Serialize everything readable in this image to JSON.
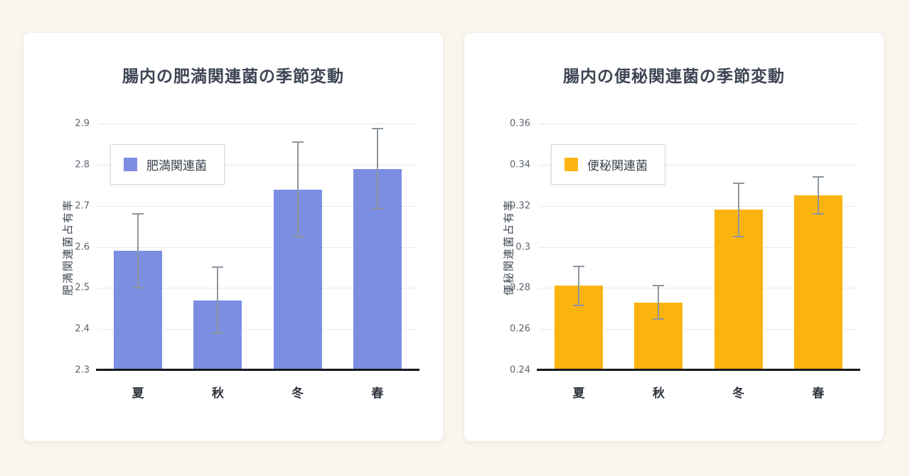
{
  "chart_data": [
    {
      "type": "bar",
      "title": "腸内の肥満関連菌の季節変動",
      "ylabel": "肥満関連菌占有率",
      "xlabel": "",
      "categories": [
        "夏",
        "秋",
        "冬",
        "春"
      ],
      "values": [
        2.59,
        2.47,
        2.74,
        2.79
      ],
      "errors": [
        0.09,
        0.08,
        0.115,
        0.098
      ],
      "ylim": [
        2.3,
        2.9
      ],
      "yticks": [
        "2.3",
        "2.4",
        "2.5",
        "2.6",
        "2.7",
        "2.8",
        "2.9"
      ],
      "legend": "肥満関連菌",
      "legend_position": "top-left",
      "bar_color": "#7C8EE2",
      "error_color": "#8f969e",
      "grid": true
    },
    {
      "type": "bar",
      "title": "腸内の便秘関連菌の季節変動",
      "ylabel": "便秘関連菌占有率",
      "xlabel": "",
      "categories": [
        "夏",
        "秋",
        "冬",
        "春"
      ],
      "values": [
        0.281,
        0.273,
        0.318,
        0.325
      ],
      "errors": [
        0.0095,
        0.008,
        0.013,
        0.009
      ],
      "ylim": [
        0.24,
        0.36
      ],
      "yticks": [
        "0.24",
        "0.26",
        "0.28",
        "0.3",
        "0.32",
        "0.34",
        "0.36"
      ],
      "legend": "便秘関連菌",
      "legend_position": "top-left",
      "bar_color": "#FBB40F",
      "error_color": "#8f969e",
      "grid": true
    }
  ]
}
